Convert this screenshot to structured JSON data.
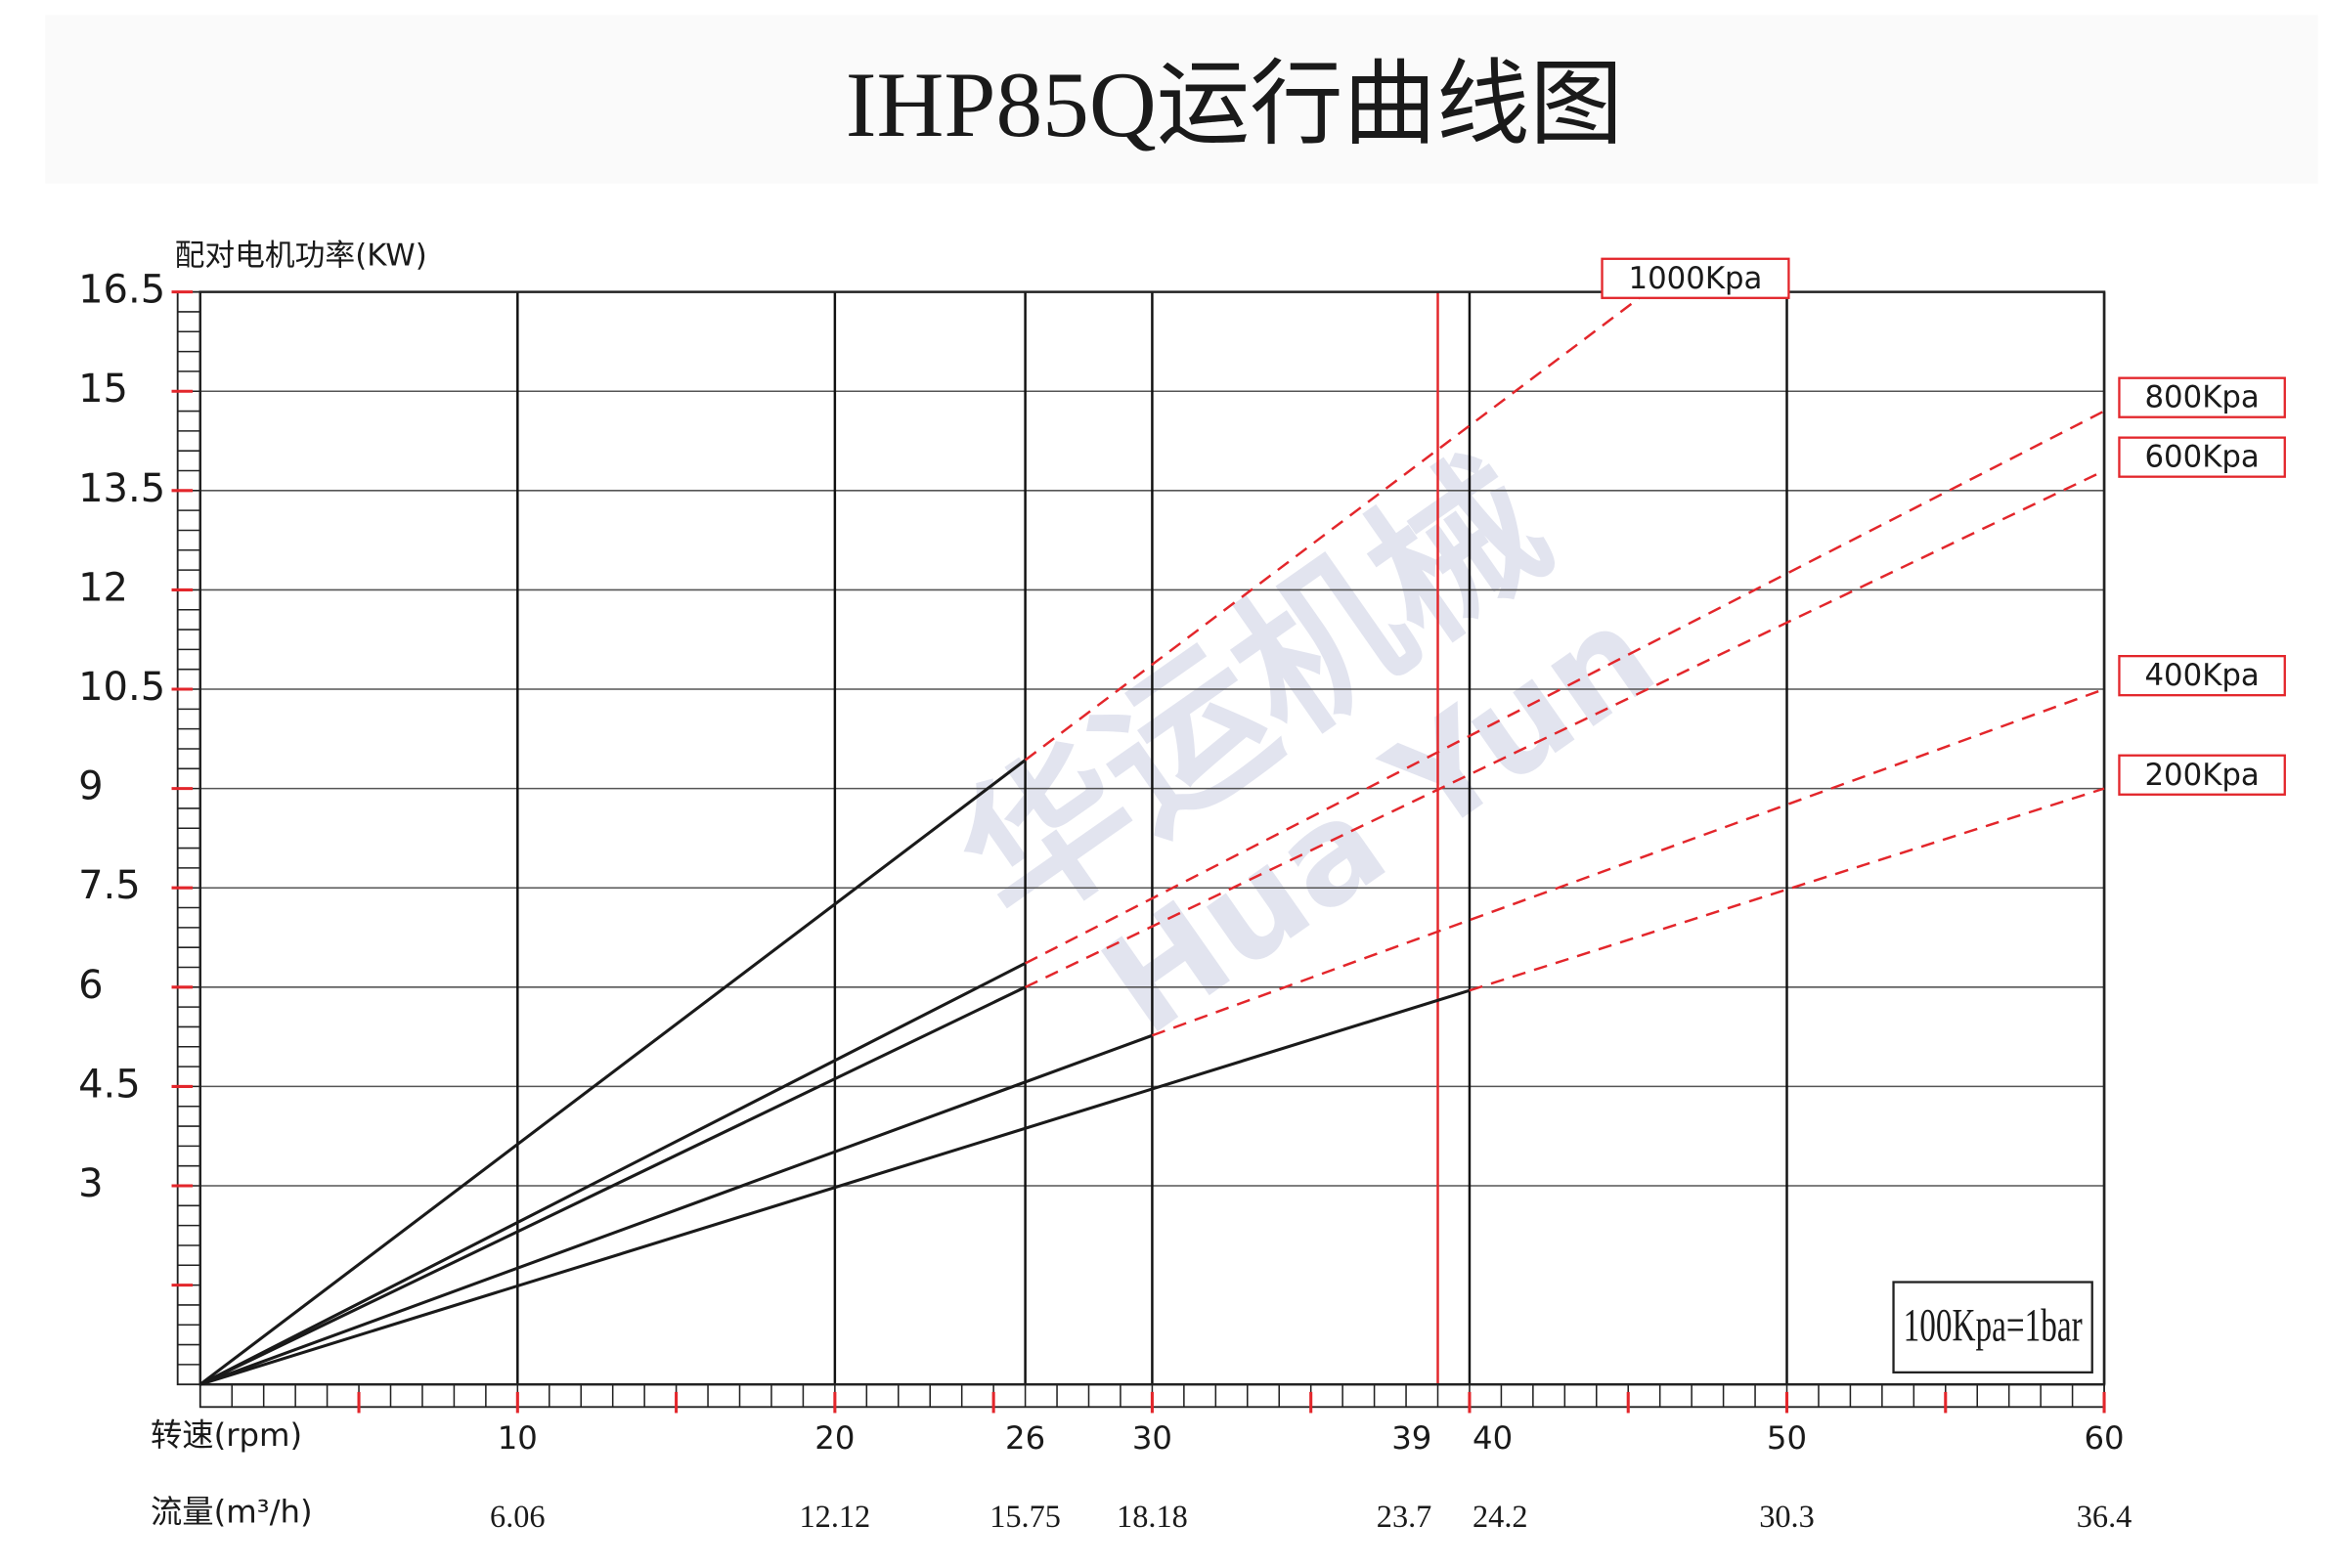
{
  "chart_data": {
    "type": "line",
    "title": "IHP85Q运行曲线图",
    "ylabel": "配对电机功率(KW)",
    "xlabel": "转速(rpm)",
    "flow_label": "流量(m³/h)",
    "note": "100Kpa=1bar",
    "watermark": [
      "华运机械",
      "Hua Yun"
    ],
    "xlim": [
      0,
      60
    ],
    "ylim": [
      0,
      16.5
    ],
    "xticks": [
      10,
      20,
      26,
      30,
      39,
      40,
      50,
      60
    ],
    "xtick_colors": [
      "#111111",
      "#111111",
      "#111111",
      "#111111",
      "#e3262b",
      "#111111",
      "#111111",
      "#111111"
    ],
    "flow_ticks": [
      6.06,
      12.12,
      15.75,
      18.18,
      23.7,
      24.2,
      30.3,
      36.4
    ],
    "yticks": [
      3,
      4.5,
      6,
      7.5,
      9,
      10.5,
      12,
      13.5,
      15,
      16.5
    ],
    "minor_ticks": {
      "x": 1,
      "y": 0.3
    },
    "major_tick_color": "#e3262b",
    "grid": true,
    "series": [
      {
        "name": "1000Kpa",
        "color": "#1a1a1a",
        "extension_color": "#e3262b",
        "x": [
          0,
          26,
          45.6
        ],
        "values": [
          0,
          9.43,
          16.5
        ],
        "segment_styles": [
          "solid",
          "dashed"
        ]
      },
      {
        "name": "800Kpa",
        "color": "#1a1a1a",
        "extension_color": "#e3262b",
        "x": [
          0,
          26,
          60
        ],
        "values": [
          0,
          6.36,
          14.7
        ],
        "segment_styles": [
          "solid",
          "dashed"
        ]
      },
      {
        "name": "600Kpa",
        "color": "#1a1a1a",
        "extension_color": "#e3262b",
        "x": [
          0,
          26,
          60
        ],
        "values": [
          0,
          6,
          13.8
        ],
        "segment_styles": [
          "solid",
          "dashed"
        ]
      },
      {
        "name": "400Kpa",
        "color": "#1a1a1a",
        "extension_color": "#e3262b",
        "x": [
          0,
          30,
          60
        ],
        "values": [
          0,
          5.27,
          10.5
        ],
        "segment_styles": [
          "solid",
          "dashed"
        ]
      },
      {
        "name": "200Kpa",
        "color": "#1a1a1a",
        "extension_color": "#e3262b",
        "x": [
          0,
          40,
          60
        ],
        "values": [
          0,
          5.95,
          9
        ],
        "segment_styles": [
          "solid",
          "dashed"
        ]
      }
    ]
  }
}
